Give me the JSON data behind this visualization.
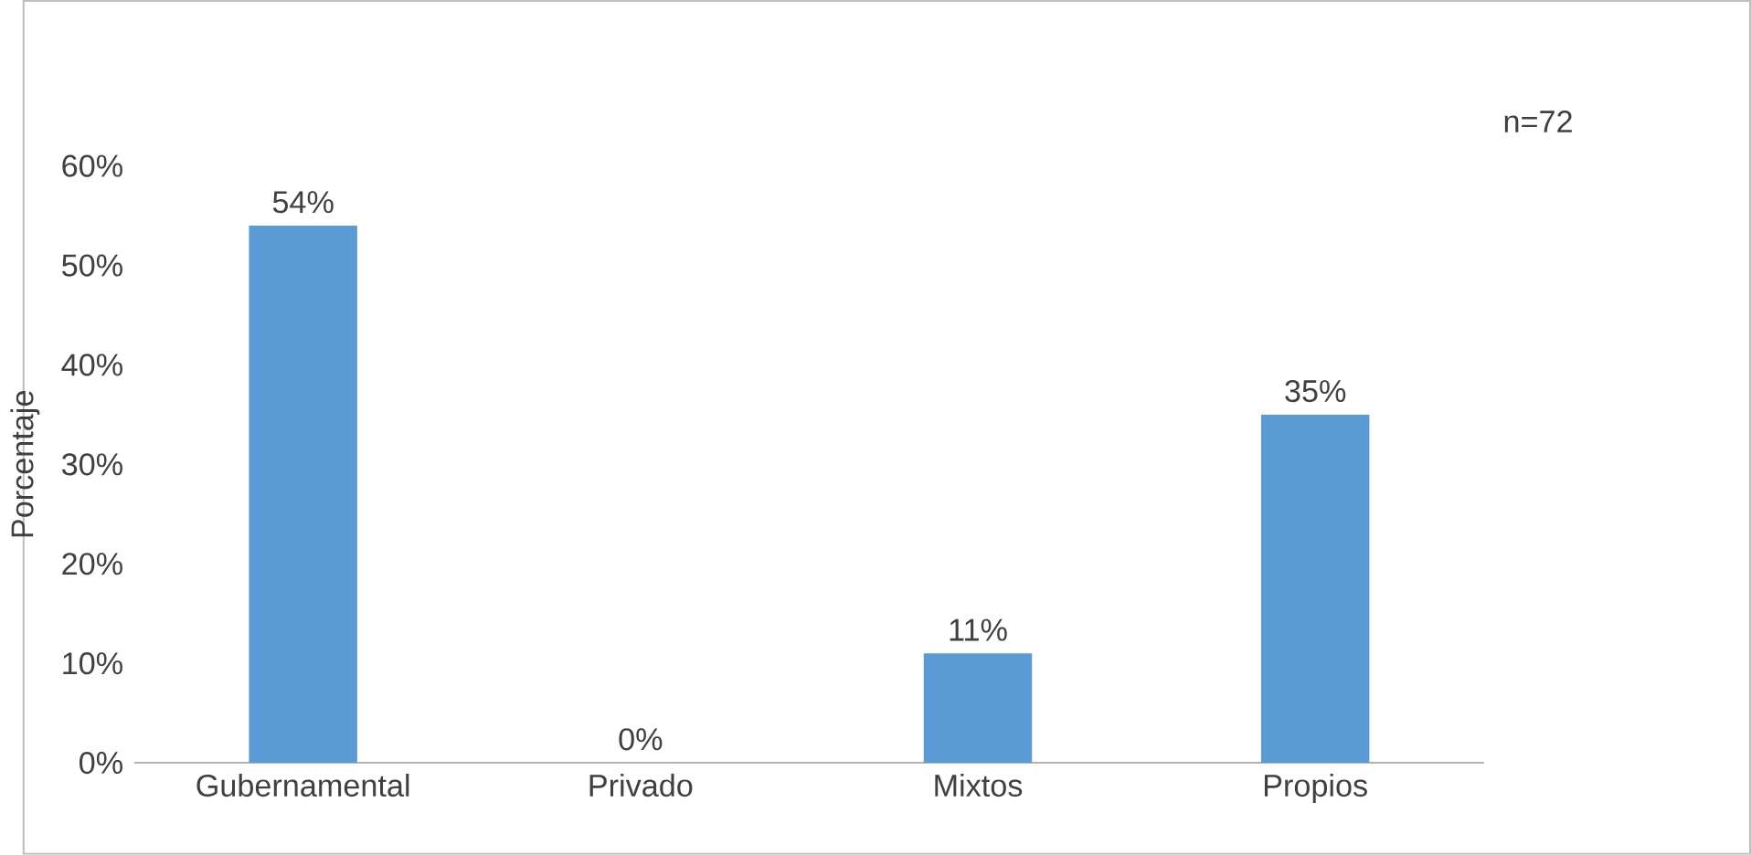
{
  "chart_data": {
    "type": "bar",
    "ylabel": "Porcentaje",
    "categories": [
      "Gubernamental",
      "Privado",
      "Mixtos",
      "Propios"
    ],
    "values": [
      54,
      0,
      11,
      35
    ],
    "value_labels": [
      "54%",
      "0%",
      "11%",
      "35%"
    ],
    "color": "#5b9bd5",
    "ylim": [
      0,
      60
    ],
    "yticks": [
      {
        "value": 0,
        "label": "0%"
      },
      {
        "value": 10,
        "label": "10%"
      },
      {
        "value": 20,
        "label": "20%"
      },
      {
        "value": 30,
        "label": "30%"
      },
      {
        "value": 40,
        "label": "40%"
      },
      {
        "value": 50,
        "label": "50%"
      },
      {
        "value": 60,
        "label": "60%"
      }
    ],
    "annotations": [
      "n=72"
    ]
  }
}
